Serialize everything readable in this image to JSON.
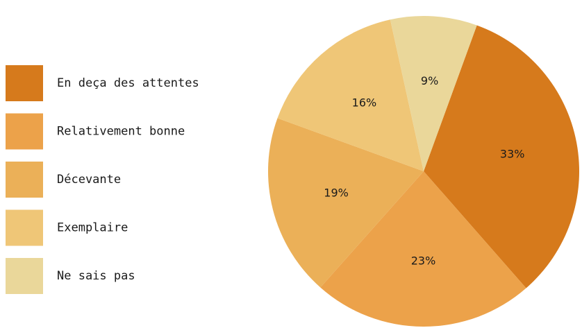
{
  "chart_data": {
    "type": "pie",
    "categories": [
      "En deça des attentes",
      "Relativement bonne",
      "Décevante",
      "Exemplaire",
      "Ne sais pas"
    ],
    "values": [
      33,
      23,
      19,
      16,
      9
    ],
    "value_labels": [
      "33%",
      "23%",
      "19%",
      "16%",
      "9%"
    ],
    "colors": [
      "#d67a1c",
      "#eca24a",
      "#ebb058",
      "#efc677",
      "#ead79a"
    ],
    "legend": "left"
  }
}
